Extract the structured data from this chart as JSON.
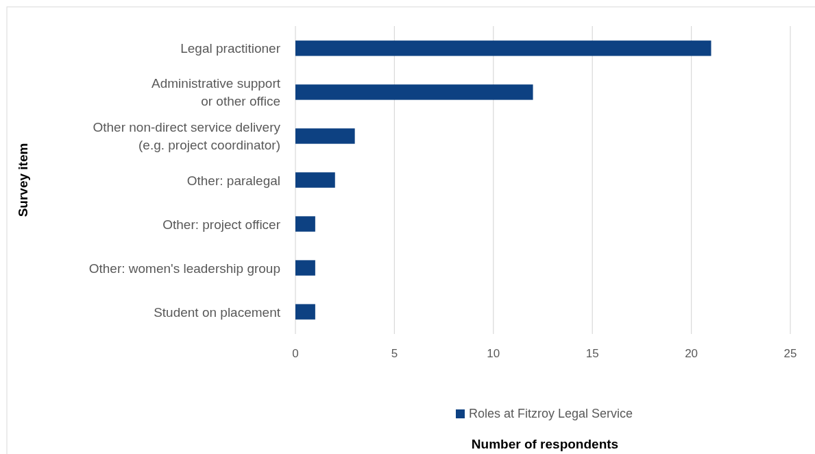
{
  "chart_data": {
    "type": "bar",
    "orientation": "horizontal",
    "annotations": [
      "Number of respondents"
    ],
    "ylabel": "Survey item",
    "categories": [
      "Legal practitioner",
      "Administrative support\nor other office",
      "Other non-direct service delivery\n(e.g. project coordinator)",
      "Other: paralegal",
      "Other: project officer",
      "Other: women's leadership group",
      "Student on placement"
    ],
    "series": [
      {
        "name": "Roles at Fitzroy Legal Service",
        "color": "#0d4182",
        "values": [
          21,
          12,
          3,
          2,
          1,
          1,
          1
        ]
      }
    ],
    "xlim": [
      0,
      25
    ],
    "xticks": [
      0,
      5,
      10,
      15,
      20,
      25
    ],
    "grid": "x",
    "legend": "bottom"
  }
}
